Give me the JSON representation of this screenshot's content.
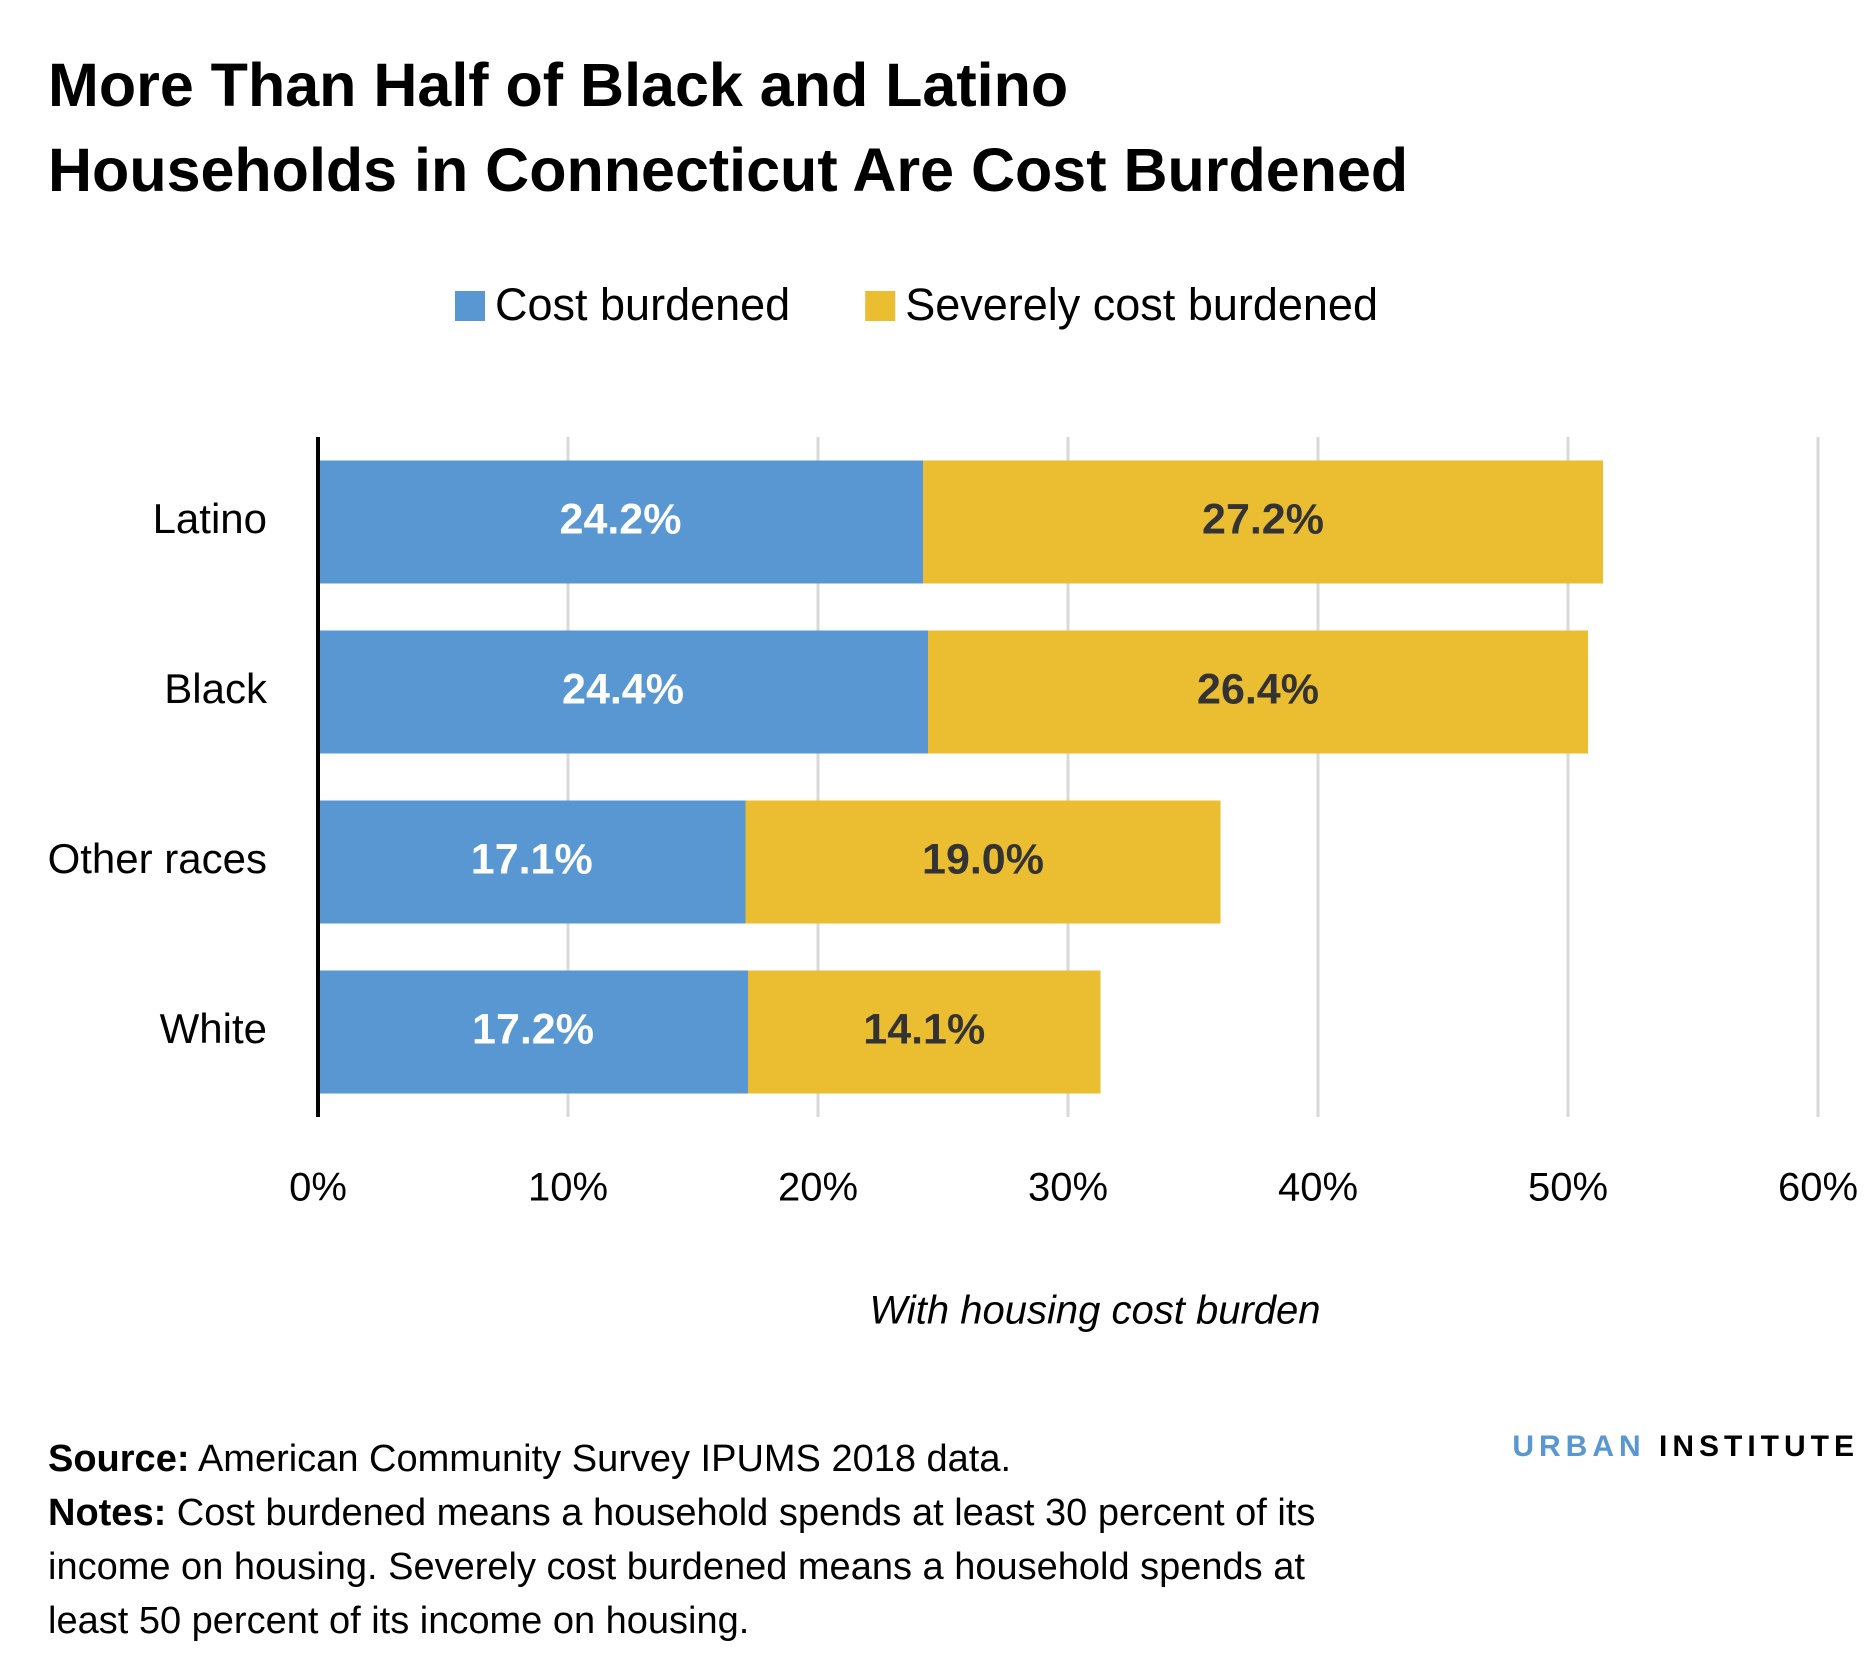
{
  "chart_data": {
    "type": "stacked-bar-horizontal",
    "title": "More Than Half of Black and Latino Households in Connecticut Are Cost Burdened",
    "categories": [
      "Latino",
      "Black",
      "Other races",
      "White"
    ],
    "series": [
      {
        "name": "Cost burdened",
        "color": "#5897d2",
        "values": [
          24.2,
          24.4,
          17.1,
          17.2
        ],
        "value_labels": [
          "24.2%",
          "24.4%",
          "17.1%",
          "17.2%"
        ]
      },
      {
        "name": "Severely cost burdened",
        "color": "#ebbd31",
        "values": [
          27.2,
          26.4,
          19.0,
          14.1
        ],
        "value_labels": [
          "27.2%",
          "26.4%",
          "19.0%",
          "14.1%"
        ]
      }
    ],
    "xlim": [
      0,
      60
    ],
    "xticks": [
      {
        "value": 0,
        "label": "0%"
      },
      {
        "value": 10,
        "label": "10%"
      },
      {
        "value": 20,
        "label": "20%"
      },
      {
        "value": 30,
        "label": "30%"
      },
      {
        "value": 40,
        "label": "40%"
      },
      {
        "value": 50,
        "label": "50%"
      },
      {
        "value": 60,
        "label": "60%"
      }
    ],
    "xlabel": "With housing cost burden",
    "grid": true,
    "legend": "top"
  },
  "footer": {
    "source_label": "Source:",
    "source_text": "American Community Survey IPUMS 2018 data.",
    "notes_label": "Notes:",
    "notes_text": "Cost burdened means a household spends at least 30 percent of its income on housing. Severely cost burdened means a household spends at least 50 percent of its income on housing.",
    "brand_1": "URBAN",
    "brand_2": "INSTITUTE"
  }
}
